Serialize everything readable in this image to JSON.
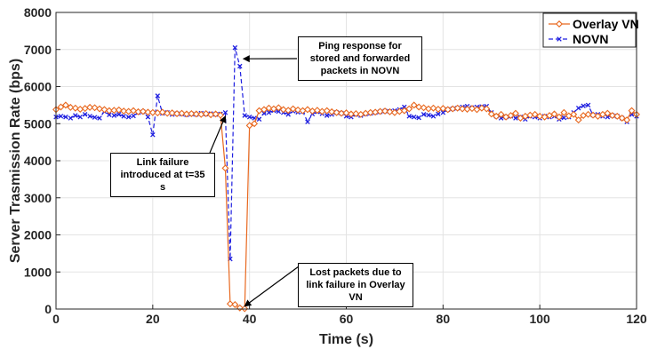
{
  "chart_data": {
    "type": "line",
    "xlabel": "Time (s)",
    "ylabel": "Server Trasmission Rate (bps)",
    "xlim": [
      0,
      120
    ],
    "ylim": [
      0,
      8000
    ],
    "xticks": [
      0,
      20,
      40,
      60,
      80,
      100,
      120
    ],
    "yticks": [
      0,
      1000,
      2000,
      3000,
      4000,
      5000,
      6000,
      7000,
      8000
    ],
    "grid": true,
    "legend_position": "top-right",
    "series": [
      {
        "name": "Overlay VN",
        "color": "#E8681F",
        "style": "solid",
        "marker": "diamond",
        "x": [
          0,
          1,
          2,
          3,
          4,
          5,
          6,
          7,
          8,
          9,
          10,
          11,
          12,
          13,
          14,
          15,
          16,
          17,
          18,
          19,
          20,
          21,
          22,
          23,
          24,
          25,
          26,
          27,
          28,
          29,
          30,
          31,
          32,
          33,
          34,
          35,
          36,
          37,
          38,
          39,
          40,
          41,
          42,
          43,
          44,
          45,
          46,
          47,
          48,
          49,
          50,
          51,
          52,
          53,
          54,
          55,
          56,
          57,
          58,
          59,
          60,
          61,
          62,
          63,
          64,
          65,
          66,
          67,
          68,
          69,
          70,
          71,
          72,
          73,
          74,
          75,
          76,
          77,
          78,
          79,
          80,
          81,
          82,
          83,
          84,
          85,
          86,
          87,
          88,
          89,
          90,
          91,
          92,
          93,
          94,
          95,
          96,
          97,
          98,
          99,
          100,
          101,
          102,
          103,
          104,
          105,
          106,
          107,
          108,
          109,
          110,
          111,
          112,
          113,
          114,
          115,
          116,
          117,
          118,
          119,
          120
        ],
        "y": [
          5380,
          5450,
          5500,
          5440,
          5420,
          5390,
          5410,
          5440,
          5430,
          5400,
          5380,
          5350,
          5360,
          5370,
          5340,
          5330,
          5350,
          5320,
          5330,
          5310,
          5300,
          5290,
          5310,
          5280,
          5290,
          5270,
          5280,
          5260,
          5270,
          5260,
          5250,
          5270,
          5240,
          5260,
          5230,
          3800,
          140,
          120,
          30,
          10,
          4950,
          5000,
          5350,
          5380,
          5420,
          5400,
          5430,
          5380,
          5360,
          5400,
          5370,
          5350,
          5380,
          5340,
          5360,
          5330,
          5350,
          5320,
          5300,
          5280,
          5290,
          5260,
          5270,
          5250,
          5280,
          5300,
          5310,
          5330,
          5340,
          5320,
          5300,
          5330,
          5350,
          5400,
          5500,
          5450,
          5430,
          5400,
          5420,
          5390,
          5410,
          5380,
          5400,
          5420,
          5400,
          5390,
          5410,
          5380,
          5420,
          5400,
          5260,
          5200,
          5250,
          5180,
          5220,
          5280,
          5150,
          5200,
          5230,
          5250,
          5200,
          5180,
          5220,
          5260,
          5180,
          5300,
          5210,
          5250,
          5100,
          5220,
          5250,
          5230,
          5200,
          5250,
          5280,
          5220,
          5200,
          5150,
          5100,
          5350,
          5250
        ]
      },
      {
        "name": "NOVN",
        "color": "#1F1FE0",
        "style": "dashed",
        "marker": "x",
        "x": [
          0,
          1,
          2,
          3,
          4,
          5,
          6,
          7,
          8,
          9,
          10,
          11,
          12,
          13,
          14,
          15,
          16,
          17,
          18,
          19,
          20,
          21,
          22,
          23,
          24,
          25,
          26,
          27,
          28,
          29,
          30,
          31,
          32,
          33,
          34,
          35,
          36,
          37,
          38,
          39,
          40,
          41,
          42,
          43,
          44,
          45,
          46,
          47,
          48,
          49,
          50,
          51,
          52,
          53,
          54,
          55,
          56,
          57,
          58,
          59,
          60,
          61,
          62,
          63,
          64,
          65,
          66,
          67,
          68,
          69,
          70,
          71,
          72,
          73,
          74,
          75,
          76,
          77,
          78,
          79,
          80,
          81,
          82,
          83,
          84,
          85,
          86,
          87,
          88,
          89,
          90,
          91,
          92,
          93,
          94,
          95,
          96,
          97,
          98,
          99,
          100,
          101,
          102,
          103,
          104,
          105,
          106,
          107,
          108,
          109,
          110,
          111,
          112,
          113,
          114,
          115,
          116,
          117,
          118,
          119,
          120
        ],
        "y": [
          5180,
          5200,
          5180,
          5150,
          5220,
          5180,
          5250,
          5200,
          5170,
          5150,
          5330,
          5240,
          5220,
          5250,
          5200,
          5180,
          5210,
          5300,
          5320,
          5180,
          4700,
          5750,
          5280,
          5300,
          5250,
          5270,
          5260,
          5240,
          5260,
          5250,
          5280,
          5260,
          5270,
          5250,
          5260,
          5300,
          1350,
          7050,
          6550,
          5220,
          5180,
          5150,
          5120,
          5280,
          5300,
          5350,
          5330,
          5300,
          5250,
          5340,
          5310,
          5330,
          5050,
          5260,
          5320,
          5270,
          5220,
          5250,
          5300,
          5280,
          5200,
          5180,
          5250,
          5220,
          5260,
          5280,
          5300,
          5320,
          5340,
          5330,
          5350,
          5380,
          5450,
          5200,
          5180,
          5160,
          5250,
          5230,
          5200,
          5260,
          5300,
          5380,
          5400,
          5420,
          5450,
          5470,
          5430,
          5450,
          5460,
          5470,
          5300,
          5200,
          5150,
          5180,
          5200,
          5150,
          5180,
          5120,
          5200,
          5180,
          5150,
          5200,
          5180,
          5200,
          5120,
          5160,
          5180,
          5300,
          5420,
          5480,
          5500,
          5230,
          5250,
          5200,
          5180,
          5220,
          5200,
          5150,
          5050,
          5250,
          5200
        ]
      }
    ],
    "annotations": [
      {
        "text": "Ping response for stored and forwarded packets in NOVN",
        "x": 38,
        "y": 6750
      },
      {
        "text": "Link failure introduced at t=35 s",
        "x": 35,
        "y": 5200
      },
      {
        "text": "Lost packets due to link failure in Overlay VN",
        "x": 39,
        "y": 30
      }
    ]
  }
}
